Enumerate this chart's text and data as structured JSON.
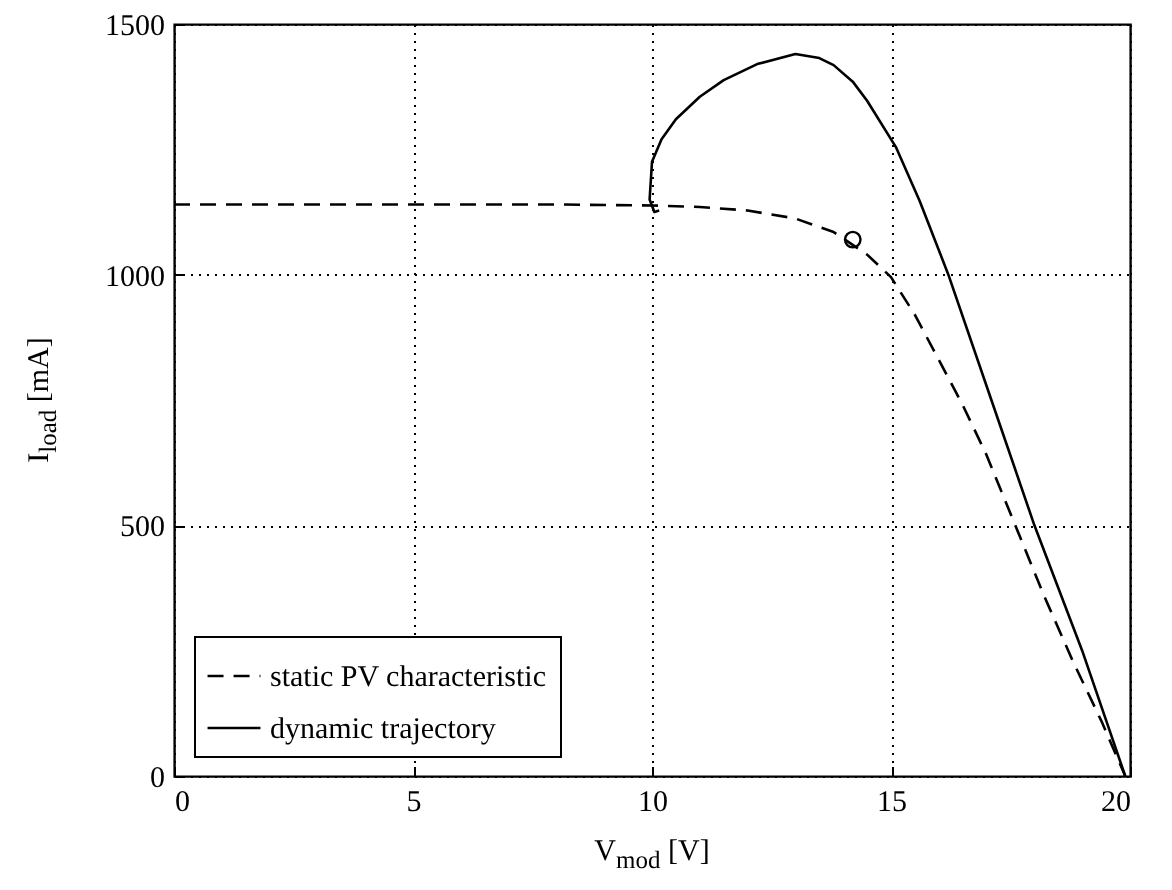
{
  "chart_data": {
    "type": "line",
    "xlabel": "V$_{mod}$ [V]",
    "ylabel": "I$_{load}$ [mA]",
    "xlim": [
      0,
      20
    ],
    "xticks": [
      0,
      5,
      10,
      15,
      20
    ],
    "ylim": [
      0,
      1500
    ],
    "yticks": [
      0,
      500,
      1000,
      1500
    ],
    "grid": true,
    "legend": "bottom left",
    "series": [
      {
        "name": "static PV characteristic",
        "color": "#000000",
        "line_style": "dashed",
        "x": [
          0,
          2,
          4,
          6,
          8,
          10,
          11,
          12,
          13,
          13.8,
          14.5,
          15,
          15.5,
          16,
          16.5,
          17,
          17.6,
          18.2,
          18.8,
          19.4,
          19.9
        ],
        "values": [
          1140,
          1140,
          1140,
          1140,
          1140,
          1138,
          1135,
          1128,
          1112,
          1085,
          1040,
          995,
          920,
          830,
          740,
          640,
          500,
          360,
          230,
          110,
          0
        ]
      },
      {
        "name": "dynamic trajectory",
        "color": "#000000",
        "line_style": "solid",
        "x": [
          10.15,
          10.05,
          9.95,
          10.0,
          10.2,
          10.5,
          11.0,
          11.5,
          12.2,
          13.0,
          13.5,
          13.8,
          14.2,
          14.5,
          15.1,
          15.6,
          16.2,
          17.1,
          18.0,
          19.0,
          19.9
        ],
        "values": [
          1128,
          1125,
          1150,
          1225,
          1270,
          1310,
          1355,
          1388,
          1420,
          1440,
          1432,
          1418,
          1385,
          1347,
          1255,
          1147,
          1000,
          750,
          500,
          250,
          0
        ]
      },
      {
        "type": "scatter",
        "marker": "circle",
        "color": "#000000",
        "x": [
          14.2
        ],
        "values": [
          1070
        ]
      }
    ]
  }
}
